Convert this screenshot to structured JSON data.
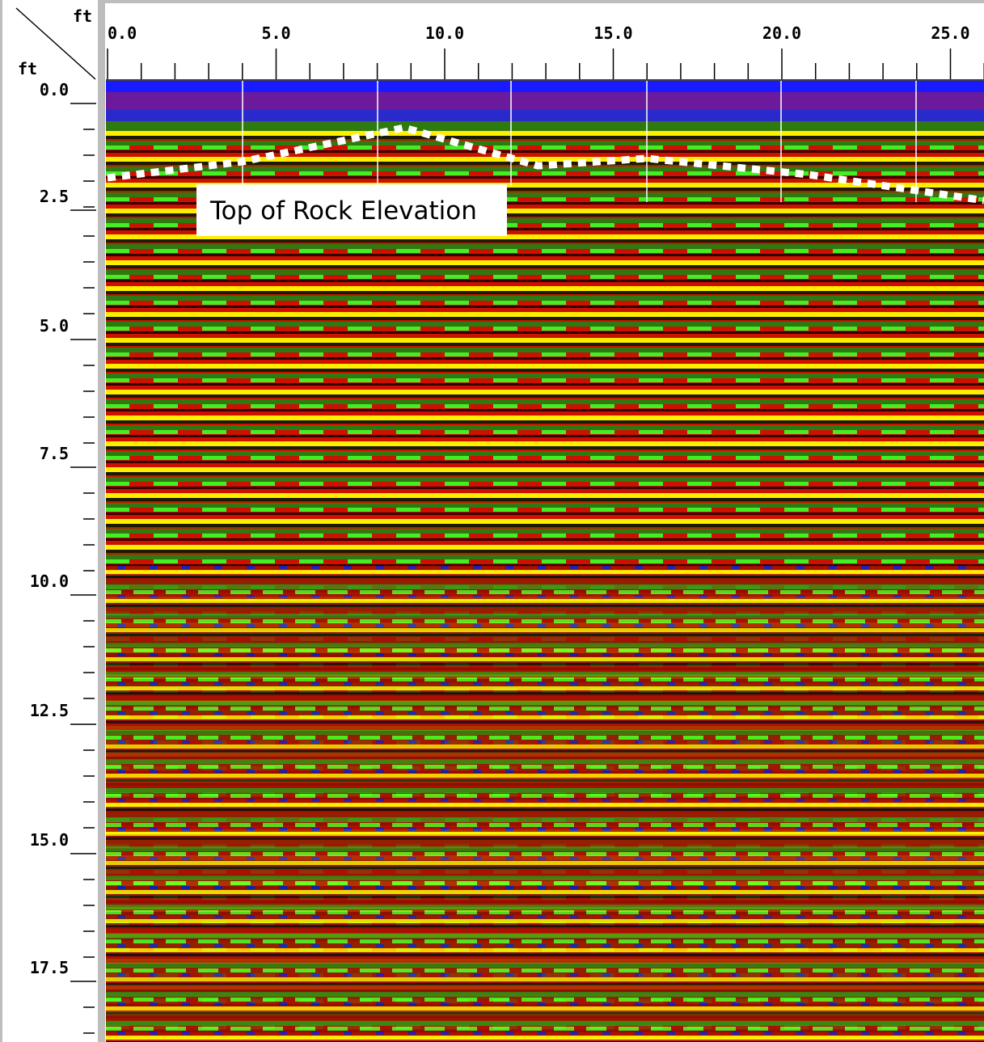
{
  "x_axis": {
    "unit": "ft",
    "tick_labels": [
      "0.0",
      "5.0",
      "10.0",
      "15.0",
      "20.0",
      "25.0"
    ]
  },
  "y_axis": {
    "unit": "ft",
    "tick_labels": [
      "0.0",
      "2.5",
      "5.0",
      "7.5",
      "10.0",
      "12.5",
      "15.0",
      "17.5"
    ]
  },
  "annotation": "Top of Rock Elevation"
}
